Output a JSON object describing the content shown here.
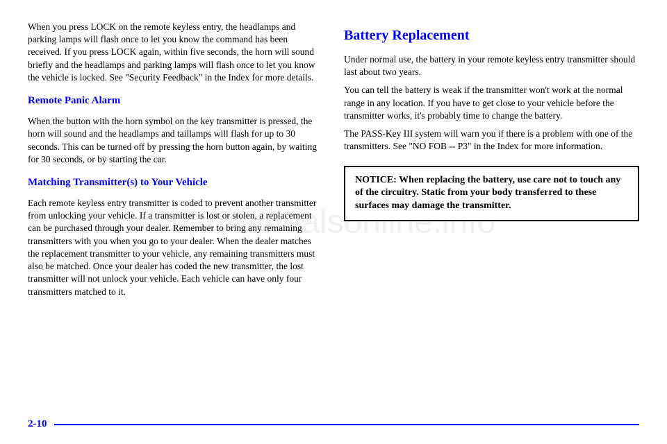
{
  "watermark": "carmanualsonline.info",
  "left": {
    "para1": "When you press LOCK on the remote keyless entry, the headlamps and parking lamps will flash once to let you know the command has been received. If you press LOCK again, within five seconds, the horn will sound briefly and the headlamps and parking lamps will flash once to let you know the vehicle is locked. See \"Security Feedback\" in the Index for more details.",
    "panic_heading": "Remote Panic Alarm",
    "panic_body": "When the button with the horn symbol on the key transmitter is pressed, the horn will sound and the headlamps and taillamps will flash for up to 30 seconds. This can be turned off by pressing the horn button again, by waiting for 30 seconds, or by starting the car.",
    "match_heading": "Matching Transmitter(s) to Your Vehicle",
    "match_body": "Each remote keyless entry transmitter is coded to prevent another transmitter from unlocking your vehicle. If a transmitter is lost or stolen, a replacement can be purchased through your dealer. Remember to bring any remaining transmitters with you when you go to your dealer. When the dealer matches the replacement transmitter to your vehicle, any remaining transmitters must also be matched. Once your dealer has coded the new transmitter, the lost transmitter will not unlock your vehicle. Each vehicle can have only four transmitters matched to it."
  },
  "right": {
    "battery_heading": "Battery Replacement",
    "battery_p1": "Under normal use, the battery in your remote keyless entry transmitter should last about two years.",
    "battery_p2": "You can tell the battery is weak if the transmitter won't work at the normal range in any location. If you have to get close to your vehicle before the transmitter works, it's probably time to change the battery.",
    "battery_p3": "The PASS-Key III system will warn you if there is a problem with one of the transmitters. See \"NO FOB -- P3\" in the Index for more information.",
    "notice_label": "NOTICE:",
    "notice_body": "When replacing the battery, use care not to touch any of the circuitry. Static from your body transferred to these surfaces may damage the transmitter."
  },
  "page_number": "2-10"
}
